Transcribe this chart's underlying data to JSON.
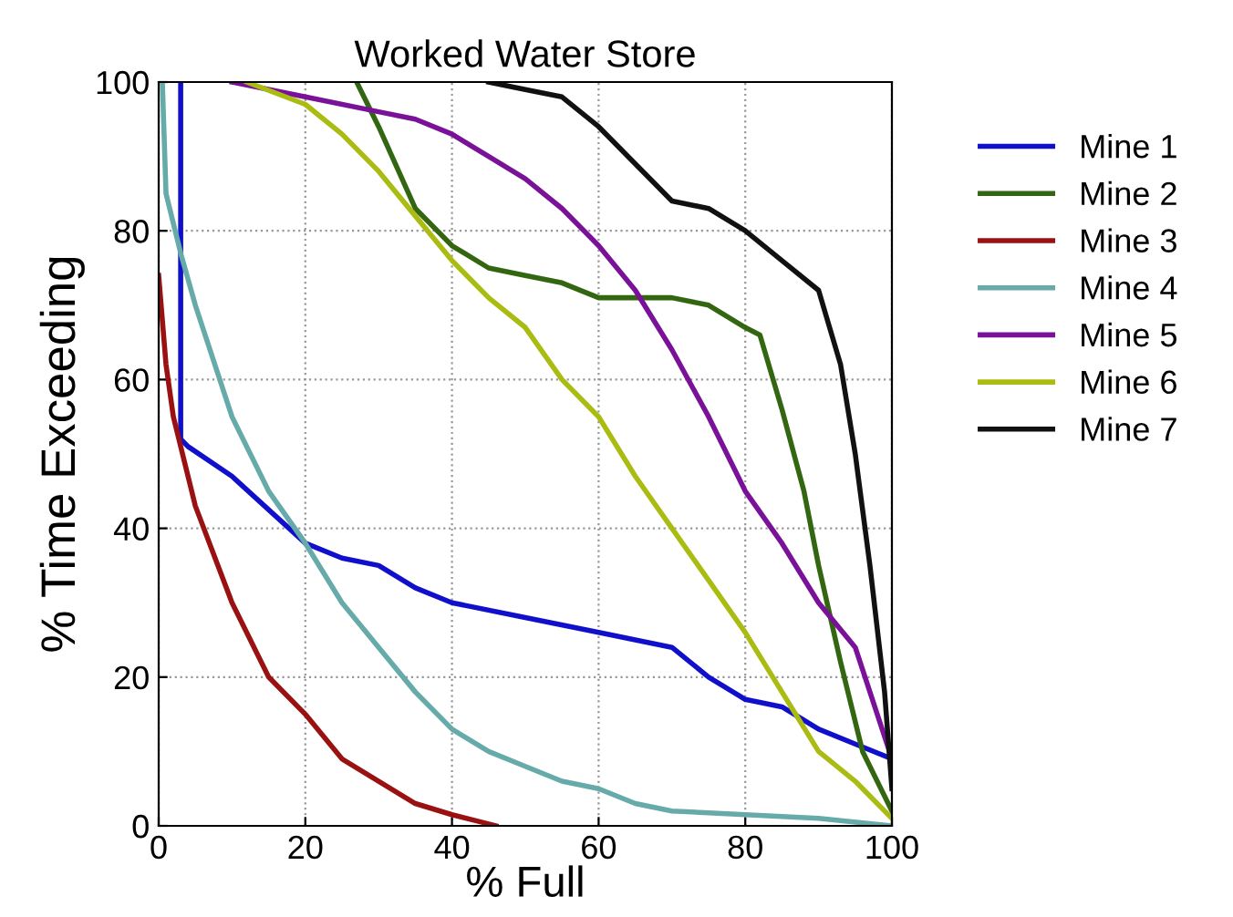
{
  "chart_data": {
    "type": "line",
    "title": "Worked Water Store",
    "xlabel": "% Full",
    "ylabel": "% Time Exceeding",
    "xlim": [
      0,
      100
    ],
    "ylim": [
      0,
      100
    ],
    "xticks": [
      0,
      20,
      40,
      60,
      80,
      100
    ],
    "yticks": [
      0,
      20,
      40,
      60,
      80,
      100
    ],
    "grid": true,
    "legend": "right",
    "line_style": "solid",
    "marker": "none",
    "series": [
      {
        "name": "Mine 1",
        "color": "#1010cc",
        "x": [
          3,
          3,
          4,
          10,
          20,
          25,
          30,
          35,
          40,
          50,
          60,
          70,
          75,
          80,
          85,
          90,
          95,
          100
        ],
        "values": [
          100,
          52,
          51,
          47,
          38,
          36,
          35,
          32,
          30,
          28,
          26,
          24,
          20,
          17,
          16,
          13,
          11,
          9
        ]
      },
      {
        "name": "Mine 2",
        "color": "#336611",
        "x": [
          27,
          30,
          35,
          40,
          45,
          50,
          55,
          60,
          65,
          70,
          75,
          80,
          82,
          85,
          88,
          90,
          93,
          96,
          100
        ],
        "values": [
          100,
          94,
          83,
          78,
          75,
          74,
          73,
          71,
          71,
          71,
          70,
          67,
          66,
          56,
          45,
          35,
          22,
          10,
          2
        ]
      },
      {
        "name": "Mine 3",
        "color": "#991111",
        "x": [
          0,
          1,
          2,
          5,
          10,
          15,
          20,
          25,
          30,
          35,
          40,
          44,
          46
        ],
        "values": [
          74,
          62,
          55,
          43,
          30,
          20,
          15,
          9,
          6,
          3,
          1.5,
          0.5,
          0
        ]
      },
      {
        "name": "Mine 4",
        "color": "#66aaaa",
        "x": [
          0.5,
          1,
          3,
          5,
          10,
          15,
          20,
          25,
          30,
          35,
          40,
          45,
          50,
          55,
          60,
          65,
          70,
          80,
          90,
          100
        ],
        "values": [
          100,
          85,
          77,
          70,
          55,
          45,
          38,
          30,
          24,
          18,
          13,
          10,
          8,
          6,
          5,
          3,
          2,
          1.5,
          1,
          0
        ]
      },
      {
        "name": "Mine 5",
        "color": "#7a1199",
        "x": [
          10,
          20,
          30,
          35,
          40,
          45,
          50,
          55,
          60,
          65,
          70,
          75,
          80,
          85,
          90,
          95,
          100
        ],
        "values": [
          100,
          98,
          96,
          95,
          93,
          90,
          87,
          83,
          78,
          72,
          64,
          55,
          45,
          38,
          30,
          24,
          9
        ]
      },
      {
        "name": "Mine 6",
        "color": "#aabb11",
        "x": [
          12,
          20,
          25,
          30,
          35,
          40,
          45,
          50,
          55,
          60,
          65,
          70,
          75,
          80,
          85,
          90,
          95,
          100
        ],
        "values": [
          100,
          97,
          93,
          88,
          82,
          76,
          71,
          67,
          60,
          55,
          47,
          40,
          33,
          26,
          18,
          10,
          6,
          1
        ]
      },
      {
        "name": "Mine 7",
        "color": "#111111",
        "x": [
          45,
          50,
          55,
          60,
          65,
          70,
          75,
          80,
          85,
          90,
          93,
          95,
          97,
          99,
          100
        ],
        "values": [
          100,
          99,
          98,
          94,
          89,
          84,
          83,
          80,
          76,
          72,
          62,
          50,
          35,
          18,
          5
        ]
      }
    ]
  }
}
